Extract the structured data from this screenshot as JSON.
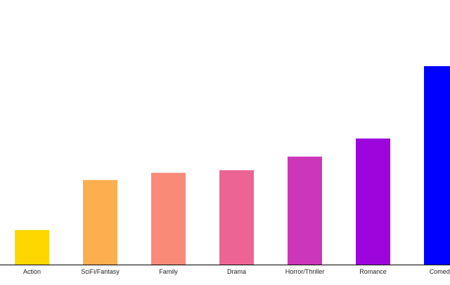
{
  "chart_data": {
    "type": "bar",
    "categories": [
      "Action",
      "SciFi/Fantasy",
      "Family",
      "Drama",
      "Horror/Thriller",
      "Romance",
      "Comedy"
    ],
    "values": [
      13,
      31.8,
      34.5,
      35.5,
      40.6,
      47.4,
      74.6
    ],
    "colors": [
      "#FFD700",
      "#FDAF50",
      "#F98A78",
      "#EC6494",
      "#CC36B8",
      "#9C06DC",
      "#0000FF"
    ],
    "ylim": [
      0,
      100
    ],
    "title": "",
    "xlabel": "",
    "ylabel": "",
    "grid": false,
    "legend": "none"
  }
}
